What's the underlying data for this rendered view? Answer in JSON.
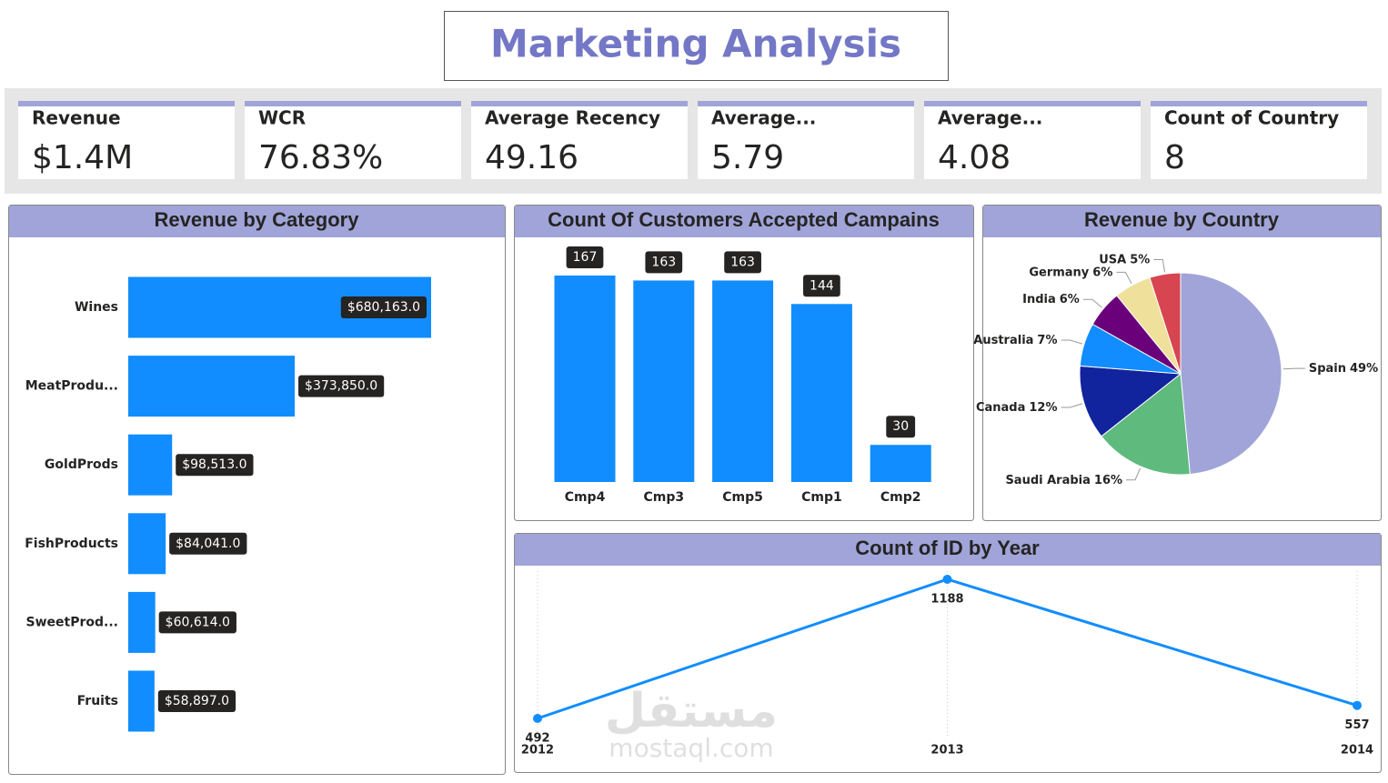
{
  "header": {
    "title": "Marketing Analysis"
  },
  "kpis": [
    {
      "label": "Revenue",
      "value": "$1.4M"
    },
    {
      "label": "WCR",
      "value": "76.83%"
    },
    {
      "label": "Average Recency",
      "value": "49.16"
    },
    {
      "label": "Average...",
      "value": "5.79"
    },
    {
      "label": "Average...",
      "value": "4.08"
    },
    {
      "label": "Count of Country",
      "value": "8"
    }
  ],
  "chart_data": [
    {
      "type": "hbar",
      "title": "Revenue by Category",
      "categories": [
        "Wines",
        "MeatProdu...",
        "GoldProds",
        "FishProducts",
        "SweetProd...",
        "Fruits"
      ],
      "values": [
        680163,
        373850,
        98513,
        84041,
        60614,
        58897
      ],
      "value_labels": [
        "$680,163.0",
        "$373,850.0",
        "$98,513.0",
        "$84,041.0",
        "$60,614.0",
        "$58,897.0"
      ],
      "color": "#118dff"
    },
    {
      "type": "bar",
      "title": "Count Of Customers Accepted Campains",
      "categories": [
        "Cmp4",
        "Cmp3",
        "Cmp5",
        "Cmp1",
        "Cmp2"
      ],
      "values": [
        167,
        163,
        163,
        144,
        30
      ],
      "color": "#118dff"
    },
    {
      "type": "pie",
      "title": "Revenue by Country",
      "categories": [
        "Spain",
        "Saudi Arabia",
        "Canada",
        "Australia",
        "India",
        "Germany",
        "USA"
      ],
      "values": [
        49,
        16,
        12,
        7,
        6,
        6,
        5
      ],
      "value_labels": [
        "49%",
        "16%",
        "12%",
        "7%",
        "6%",
        "6%",
        "5%"
      ],
      "colors": [
        "#a0a4d8",
        "#5fba7d",
        "#12239e",
        "#118dff",
        "#6b007b",
        "#efe09b",
        "#d64550"
      ]
    },
    {
      "type": "line",
      "title": "Count of ID by Year",
      "x": [
        2012,
        2013,
        2014
      ],
      "values": [
        492,
        1188,
        557
      ],
      "color": "#118dff"
    }
  ],
  "watermark": {
    "arabic": "مستقل",
    "text": "mostaql.com"
  }
}
